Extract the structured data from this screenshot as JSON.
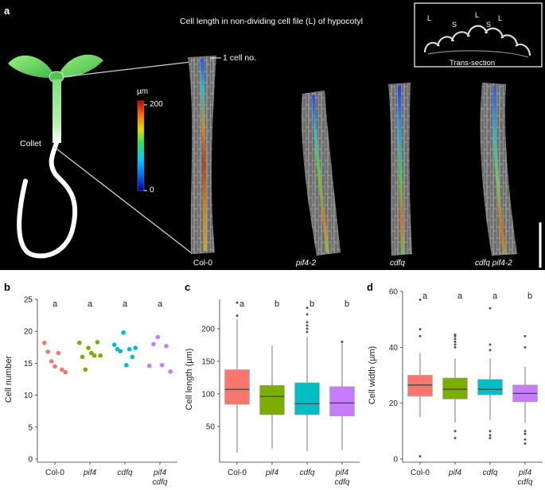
{
  "panel_a": {
    "letter": "a",
    "title": "Cell length in non-dividing cell file (L) of hypocotyl",
    "annotation_cell": "1 cell no.",
    "collet_label": "Collet",
    "colorbar": {
      "unit": "µm",
      "max_label": "200",
      "min_label": "0",
      "max": 200,
      "min": 0
    },
    "inset": {
      "caption": "Trans-section",
      "labels": [
        "L",
        "S",
        "L",
        "S",
        "L"
      ]
    },
    "genotypes": [
      "Col-0",
      "pif4-2",
      "cdfq",
      "cdfq pif4-2"
    ]
  },
  "chart_data": [
    {
      "panel": "b",
      "type": "scatter",
      "ylabel": "Cell number",
      "categories": [
        "Col-0",
        "pif4",
        "cdfq",
        "pif4 cdfq"
      ],
      "ylim": [
        0,
        25
      ],
      "yticks": [
        0,
        5,
        10,
        15,
        20,
        25
      ],
      "significance": [
        "a",
        "a",
        "a",
        "a"
      ],
      "colors": [
        "#f8766d",
        "#7cae00",
        "#00bfc4",
        "#c77cff"
      ],
      "points": [
        [
          18.2,
          16.8,
          15.3,
          14.5,
          16.6,
          14.0,
          13.6
        ],
        [
          18.2,
          16.0,
          14.0,
          17.4,
          16.6,
          16.2,
          18.3,
          16.2
        ],
        [
          17.9,
          17.2,
          16.9,
          19.8,
          14.7,
          17.2,
          16.0,
          17.4
        ],
        [
          14.6,
          18.0,
          19.1,
          14.7,
          17.7,
          13.7
        ]
      ]
    },
    {
      "panel": "c",
      "type": "box",
      "ylabel": "Cell length (µm)",
      "categories": [
        "Col-0",
        "pif4",
        "cdfq",
        "pif4 cdfq"
      ],
      "ylim": [
        0,
        245
      ],
      "yticks": [
        50,
        100,
        150,
        200
      ],
      "significance": [
        "a",
        "b",
        "b",
        "b"
      ],
      "colors": [
        "#f8766d",
        "#7cae00",
        "#00bfc4",
        "#c77cff"
      ],
      "boxes": [
        {
          "min": 10,
          "q1": 84,
          "median": 107,
          "q3": 137,
          "max": 215,
          "outliers": [
            220,
            240
          ]
        },
        {
          "min": 16,
          "q1": 68,
          "median": 96,
          "q3": 113,
          "max": 174,
          "outliers": []
        },
        {
          "min": 12,
          "q1": 68,
          "median": 85,
          "q3": 117,
          "max": 188,
          "outliers": [
            195,
            200,
            205,
            210,
            222,
            232
          ]
        },
        {
          "min": 14,
          "q1": 66,
          "median": 86,
          "q3": 111,
          "max": 178,
          "outliers": [
            180
          ]
        }
      ]
    },
    {
      "panel": "d",
      "type": "box",
      "ylabel": "Cell width (µm)",
      "categories": [
        "Col-0",
        "pif4",
        "cdfq",
        "pif4 cdfq"
      ],
      "ylim": [
        0,
        60
      ],
      "yticks": [
        0,
        20,
        40,
        60
      ],
      "significance": [
        "a",
        "a",
        "a",
        "b"
      ],
      "colors": [
        "#f8766d",
        "#7cae00",
        "#00bfc4",
        "#c77cff"
      ],
      "boxes": [
        {
          "min": 15,
          "q1": 22.5,
          "median": 26.5,
          "q3": 30,
          "max": 38,
          "outliers": [
            1,
            44,
            46.5,
            57
          ]
        },
        {
          "min": 13,
          "q1": 21.5,
          "median": 25,
          "q3": 29,
          "max": 36,
          "outliers": [
            7.5,
            10,
            40,
            41,
            42,
            43,
            44,
            44.5
          ]
        },
        {
          "min": 14,
          "q1": 23,
          "median": 25,
          "q3": 28.5,
          "max": 36,
          "outliers": [
            7.5,
            8.5,
            10,
            39,
            41,
            54
          ]
        },
        {
          "min": 13,
          "q1": 20.5,
          "median": 23.5,
          "q3": 26.5,
          "max": 33,
          "outliers": [
            5.5,
            7,
            9,
            10,
            40,
            44
          ]
        }
      ]
    }
  ]
}
